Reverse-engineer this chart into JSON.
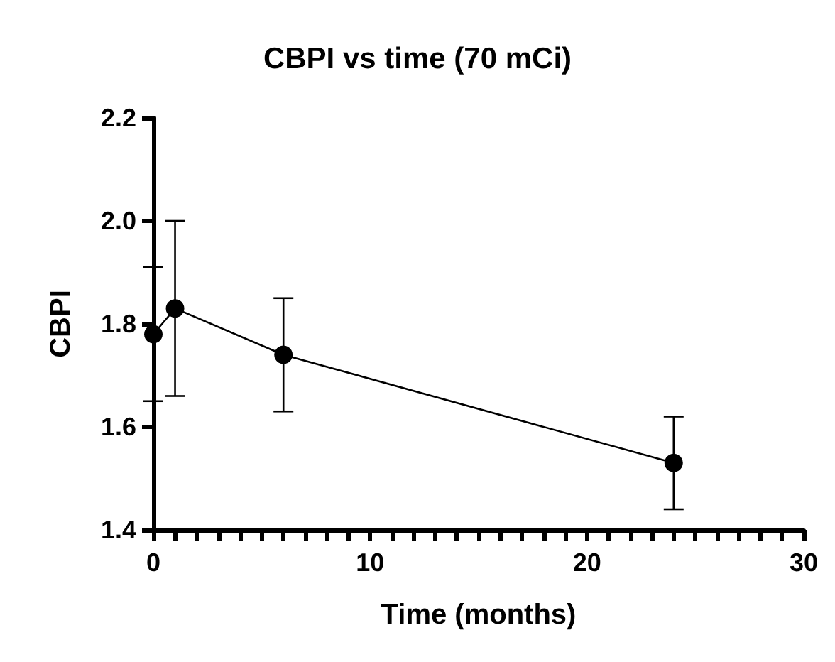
{
  "chart_data": {
    "type": "line",
    "title": "CBPI vs time (70 mCi)",
    "xlabel": "Time (months)",
    "ylabel": "CBPI",
    "x": [
      0,
      1,
      6,
      24
    ],
    "series": [
      {
        "color": "#000000",
        "values": [
          1.78,
          1.83,
          1.74,
          1.53
        ],
        "errors": [
          [
            1.65,
            1.91
          ],
          [
            1.66,
            2.0
          ],
          [
            1.63,
            1.85
          ],
          [
            1.44,
            1.62
          ]
        ]
      }
    ],
    "xlim": [
      0,
      30
    ],
    "xticks": [
      0,
      {
        "value": 1,
        "label": null
      },
      {
        "value": 2,
        "label": null
      },
      {
        "value": 3,
        "label": null
      },
      {
        "value": 4,
        "label": null
      },
      {
        "value": 5,
        "label": null
      },
      {
        "value": 6,
        "label": null
      },
      {
        "value": 7,
        "label": null
      },
      {
        "value": 8,
        "label": null
      },
      {
        "value": 9,
        "label": null
      },
      10,
      {
        "value": 11,
        "label": null
      },
      {
        "value": 12,
        "label": null
      },
      {
        "value": 13,
        "label": null
      },
      {
        "value": 14,
        "label": null
      },
      {
        "value": 15,
        "label": null
      },
      {
        "value": 16,
        "label": null
      },
      {
        "value": 17,
        "label": null
      },
      {
        "value": 18,
        "label": null
      },
      {
        "value": 19,
        "label": null
      },
      20,
      {
        "value": 21,
        "label": null
      },
      {
        "value": 22,
        "label": null
      },
      {
        "value": 23,
        "label": null
      },
      {
        "value": 24,
        "label": null
      },
      {
        "value": 25,
        "label": null
      },
      {
        "value": 26,
        "label": null
      },
      {
        "value": 27,
        "label": null
      },
      {
        "value": 28,
        "label": null
      },
      {
        "value": 29,
        "label": null
      },
      30
    ],
    "ylim": [
      1.4,
      2.2
    ],
    "yticks": [
      1.4,
      1.6,
      1.8,
      {
        "value": 2.0,
        "label": "2.0"
      },
      2.2
    ],
    "grid": false,
    "marker": "circle",
    "line_style": "solid"
  }
}
